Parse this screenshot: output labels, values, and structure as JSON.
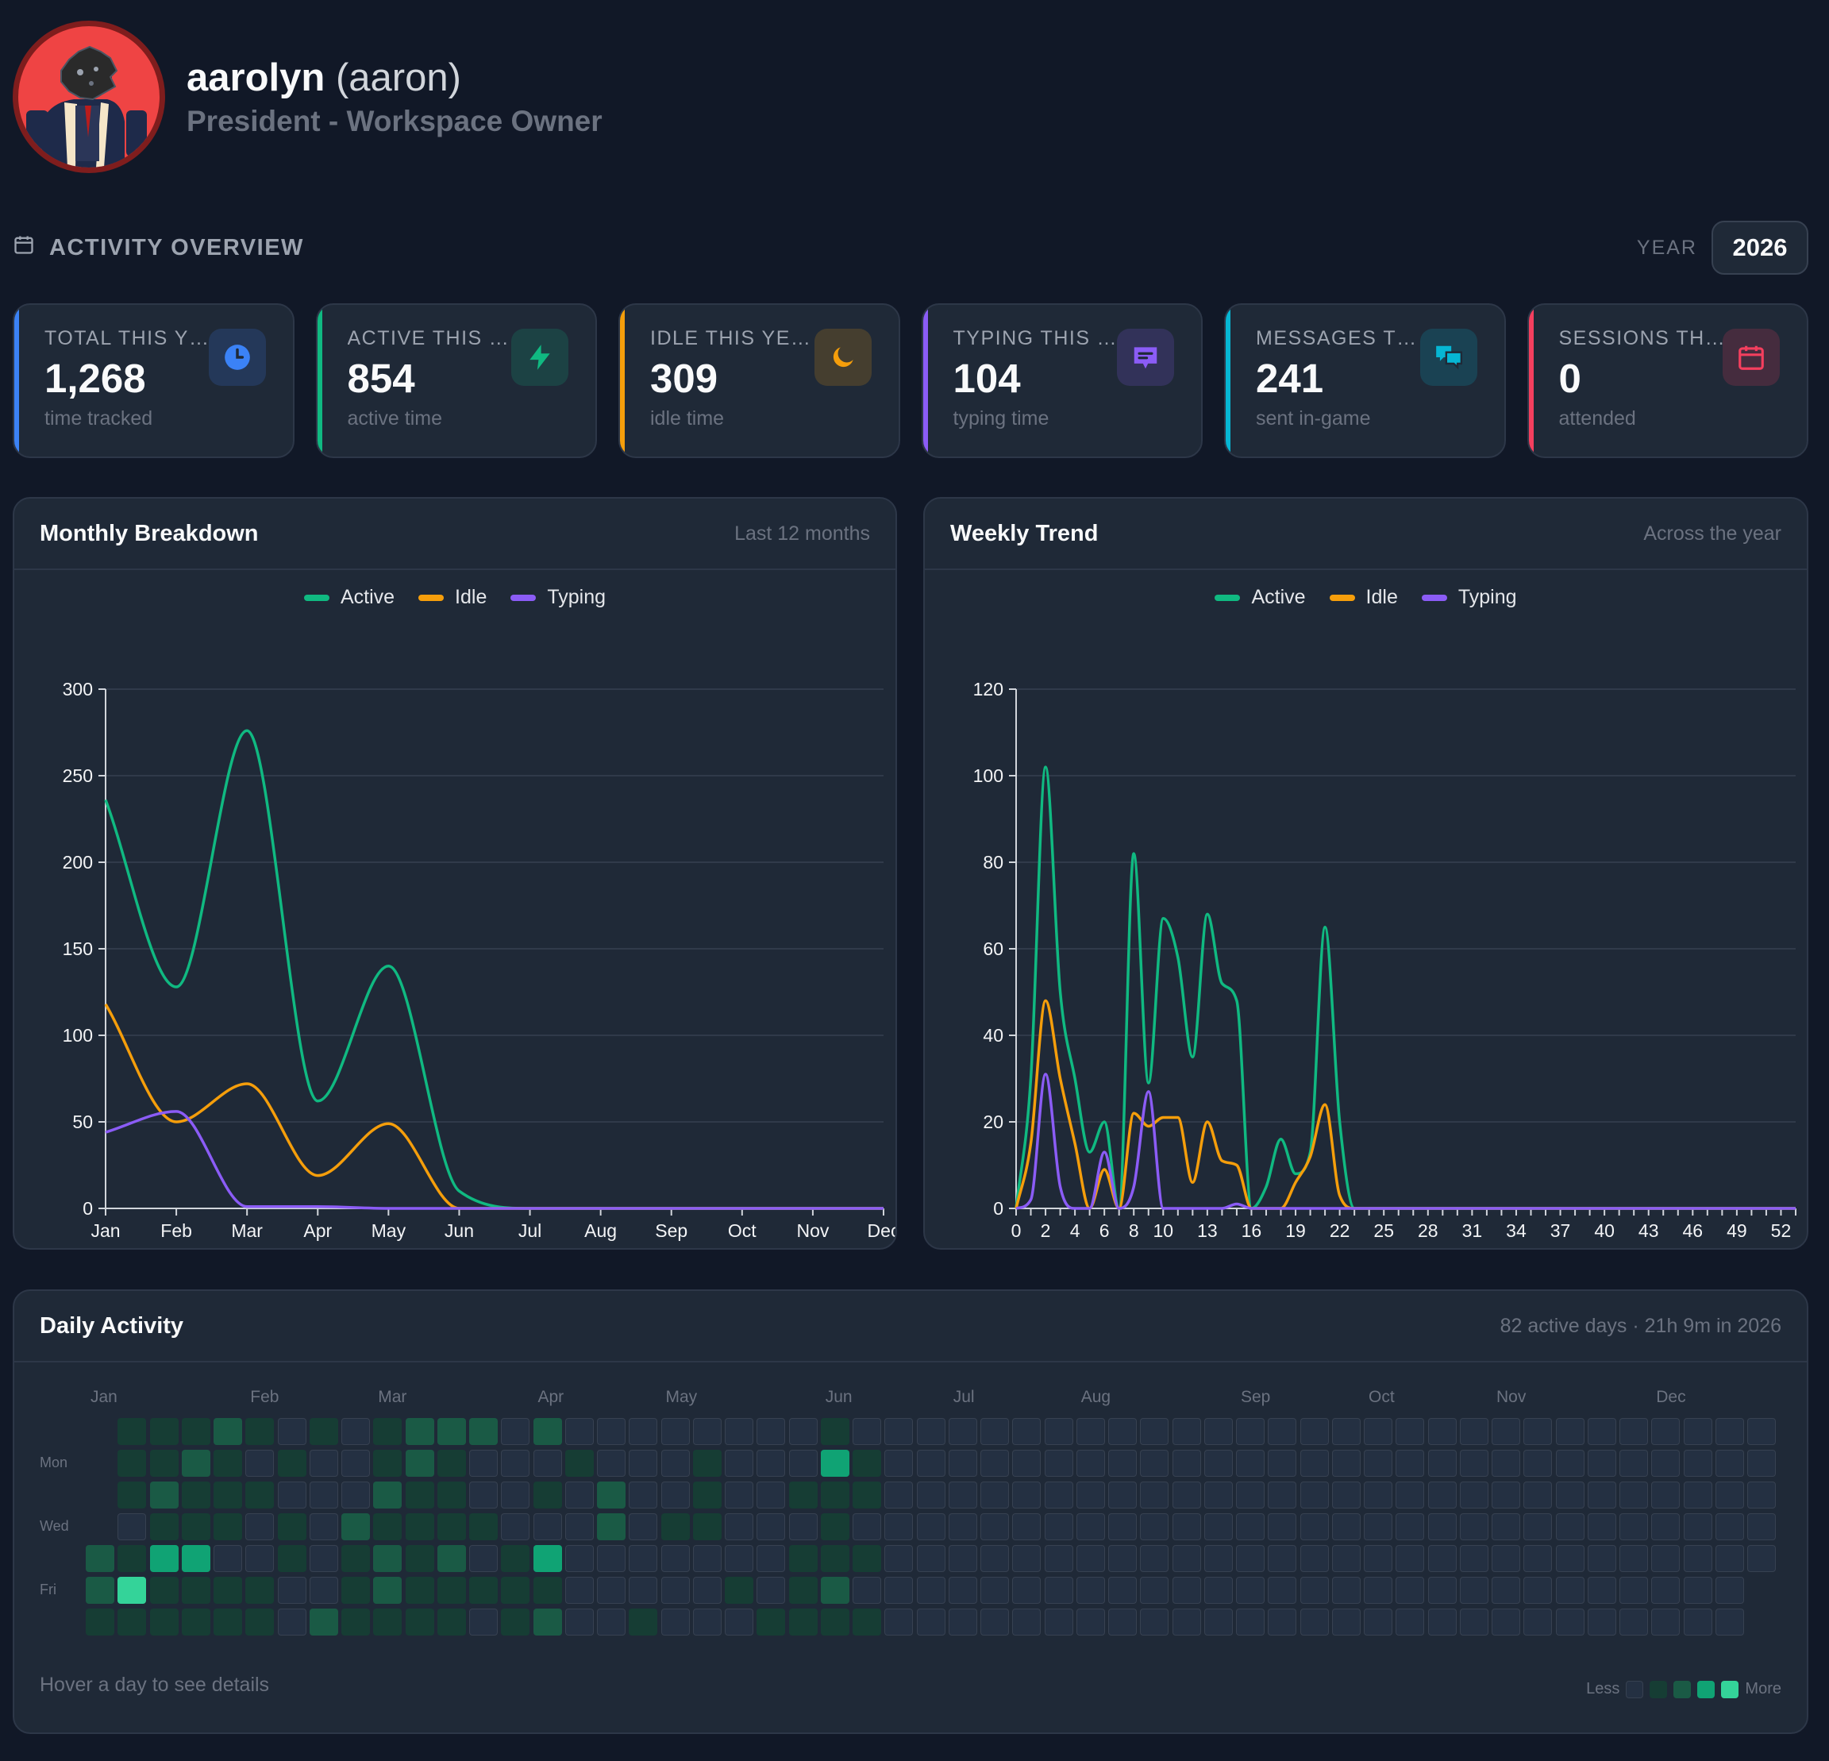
{
  "profile": {
    "name": "aarolyn",
    "handle": "(aaron)",
    "role": "President - Workspace Owner"
  },
  "overview": {
    "title": "ACTIVITY OVERVIEW",
    "year_label": "YEAR",
    "year_value": "2026"
  },
  "stats": [
    {
      "label": "TOTAL THIS YEAR",
      "value": "1,268",
      "sub": "time tracked",
      "color": "#3b82f6",
      "icon": "clock-icon"
    },
    {
      "label": "ACTIVE THIS YEAR",
      "value": "854",
      "sub": "active time",
      "color": "#10b981",
      "icon": "lightning-icon"
    },
    {
      "label": "IDLE THIS YEAR",
      "value": "309",
      "sub": "idle time",
      "color": "#f59e0b",
      "icon": "moon-icon"
    },
    {
      "label": "TYPING THIS YEAR",
      "value": "104",
      "sub": "typing time",
      "color": "#8b5cf6",
      "icon": "message-icon"
    },
    {
      "label": "MESSAGES THIS YEAR",
      "value": "241",
      "sub": "sent in-game",
      "color": "#06b6d4",
      "icon": "chat-bubbles-icon"
    },
    {
      "label": "SESSIONS THIS YEAR",
      "value": "0",
      "sub": "attended",
      "color": "#f43f5e",
      "icon": "calendar-icon"
    }
  ],
  "monthly": {
    "title": "Monthly Breakdown",
    "subtitle": "Last 12 months"
  },
  "weekly": {
    "title": "Weekly Trend",
    "subtitle": "Across the year"
  },
  "legend": {
    "active": "Active",
    "idle": "Idle",
    "typing": "Typing"
  },
  "colors": {
    "active": "#10b981",
    "idle": "#f59e0b",
    "typing": "#8b5cf6"
  },
  "chart_data": [
    {
      "type": "line",
      "title": "Monthly Breakdown",
      "x": [
        "Jan",
        "Feb",
        "Mar",
        "Apr",
        "May",
        "Jun",
        "Jul",
        "Aug",
        "Sep",
        "Oct",
        "Nov",
        "Dec"
      ],
      "ylim": [
        0,
        300
      ],
      "yticks": [
        0,
        50,
        100,
        150,
        200,
        250,
        300
      ],
      "grid": true,
      "legend": "top-center",
      "series": [
        {
          "name": "Active",
          "values": [
            236,
            128,
            276,
            62,
            140,
            10,
            0,
            0,
            0,
            0,
            0,
            0
          ]
        },
        {
          "name": "Idle",
          "values": [
            118,
            50,
            72,
            19,
            49,
            0,
            0,
            0,
            0,
            0,
            0,
            0
          ]
        },
        {
          "name": "Typing",
          "values": [
            44,
            56,
            1,
            1,
            0,
            0,
            0,
            0,
            0,
            0,
            0,
            0
          ]
        }
      ]
    },
    {
      "type": "line",
      "title": "Weekly Trend",
      "xticks": [
        0,
        2,
        4,
        6,
        8,
        10,
        13,
        16,
        19,
        22,
        25,
        28,
        31,
        34,
        37,
        40,
        43,
        46,
        49,
        52
      ],
      "xlim": [
        0,
        53
      ],
      "ylim": [
        0,
        120
      ],
      "yticks": [
        0,
        20,
        40,
        60,
        80,
        100,
        120
      ],
      "grid": true,
      "legend": "top-center",
      "series": [
        {
          "name": "Active",
          "x": [
            0,
            1,
            2,
            3,
            4,
            5,
            6,
            7,
            8,
            9,
            10,
            11,
            12,
            13,
            14,
            15,
            16,
            17,
            18,
            19,
            20,
            21,
            22,
            23,
            24,
            25,
            26,
            27,
            28,
            29,
            30,
            31,
            32,
            33,
            34,
            35,
            36,
            37,
            38,
            39,
            40,
            41,
            42,
            43,
            44,
            45,
            46,
            47,
            48,
            49,
            50,
            51,
            52,
            53
          ],
          "values": [
            0,
            30,
            102,
            50,
            30,
            13,
            20,
            0,
            82,
            29,
            67,
            58,
            35,
            68,
            52,
            48,
            0,
            5,
            16,
            8,
            13,
            65,
            20,
            0,
            0,
            0,
            0,
            0,
            0,
            0,
            0,
            0,
            0,
            0,
            0,
            0,
            0,
            0,
            0,
            0,
            0,
            0,
            0,
            0,
            0,
            0,
            0,
            0,
            0,
            0,
            0,
            0,
            0,
            0
          ]
        },
        {
          "name": "Idle",
          "x": [
            0,
            1,
            2,
            3,
            4,
            5,
            6,
            7,
            8,
            9,
            10,
            11,
            12,
            13,
            14,
            15,
            16,
            17,
            18,
            19,
            20,
            21,
            22,
            23,
            24,
            25,
            26,
            27,
            28,
            29,
            30,
            31,
            32,
            33,
            34,
            35,
            36,
            37,
            38,
            39,
            40,
            41,
            42,
            43,
            44,
            45,
            46,
            47,
            48,
            49,
            50,
            51,
            52,
            53
          ],
          "values": [
            0,
            15,
            48,
            30,
            15,
            0,
            9,
            0,
            22,
            19,
            21,
            21,
            6,
            20,
            11,
            10,
            0,
            0,
            0,
            6,
            12,
            24,
            3,
            0,
            0,
            0,
            0,
            0,
            0,
            0,
            0,
            0,
            0,
            0,
            0,
            0,
            0,
            0,
            0,
            0,
            0,
            0,
            0,
            0,
            0,
            0,
            0,
            0,
            0,
            0,
            0,
            0,
            0,
            0
          ]
        },
        {
          "name": "Typing",
          "x": [
            0,
            1,
            2,
            3,
            4,
            5,
            6,
            7,
            8,
            9,
            10,
            11,
            12,
            13,
            14,
            15,
            16,
            17,
            18,
            19,
            20,
            21,
            22,
            23,
            24,
            25,
            26,
            27,
            28,
            29,
            30,
            31,
            32,
            33,
            34,
            35,
            36,
            37,
            38,
            39,
            40,
            41,
            42,
            43,
            44,
            45,
            46,
            47,
            48,
            49,
            50,
            51,
            52,
            53
          ],
          "values": [
            0,
            2,
            31,
            5,
            0,
            0,
            13,
            0,
            5,
            27,
            0,
            0,
            0,
            0,
            0,
            1,
            0,
            0,
            0,
            0,
            0,
            0,
            0,
            0,
            0,
            0,
            0,
            0,
            0,
            0,
            0,
            0,
            0,
            0,
            0,
            0,
            0,
            0,
            0,
            0,
            0,
            0,
            0,
            0,
            0,
            0,
            0,
            0,
            0,
            0,
            0,
            0,
            0,
            0
          ]
        }
      ]
    }
  ],
  "daily": {
    "title": "Daily Activity",
    "subtitle": "82 active days · 21h 9m in 2026",
    "hint": "Hover a day to see details",
    "legend_less": "Less",
    "legend_more": "More",
    "months": [
      {
        "label": "Jan",
        "week": 0
      },
      {
        "label": "Feb",
        "week": 5
      },
      {
        "label": "Mar",
        "week": 9
      },
      {
        "label": "Apr",
        "week": 14
      },
      {
        "label": "May",
        "week": 18
      },
      {
        "label": "Jun",
        "week": 23
      },
      {
        "label": "Jul",
        "week": 27
      },
      {
        "label": "Aug",
        "week": 31
      },
      {
        "label": "Sep",
        "week": 36
      },
      {
        "label": "Oct",
        "week": 40
      },
      {
        "label": "Nov",
        "week": 44
      },
      {
        "label": "Dec",
        "week": 49
      }
    ],
    "day_labels": [
      {
        "label": "Mon",
        "row": 1
      },
      {
        "label": "Wed",
        "row": 3
      },
      {
        "label": "Fri",
        "row": 5
      }
    ],
    "level_colors": [
      "#243042",
      "#163d34",
      "#1a5a45",
      "#10a374",
      "#34d399"
    ],
    "first_day_row": 4,
    "total_days": 365,
    "active_levels": [
      2,
      2,
      1,
      1,
      1,
      1,
      0,
      1,
      4,
      1,
      1,
      1,
      2,
      1,
      3,
      1,
      1,
      1,
      2,
      1,
      1,
      3,
      1,
      1,
      2,
      1,
      1,
      1,
      0,
      1,
      1,
      1,
      0,
      1,
      0,
      0,
      1,
      1,
      0,
      1,
      0,
      1,
      1,
      0,
      0,
      1,
      0,
      0,
      0,
      0,
      0,
      2,
      0,
      0,
      0,
      2,
      1,
      1,
      1,
      1,
      1,
      2,
      1,
      2,
      2,
      1,
      2,
      2,
      1,
      1,
      1,
      1,
      1,
      2,
      1,
      1,
      1,
      2,
      1,
      1,
      2,
      0,
      0,
      1,
      0,
      1,
      0,
      0,
      0,
      0,
      0,
      1,
      1,
      1,
      2,
      0,
      1,
      0,
      3,
      1,
      2,
      0,
      1,
      0,
      0,
      0,
      0,
      0,
      0,
      0,
      2,
      2,
      0,
      0,
      0,
      0,
      0,
      0,
      0,
      0,
      0,
      1,
      0,
      0,
      0,
      1,
      0,
      0,
      0,
      0,
      1,
      1,
      1,
      0,
      0,
      0,
      0,
      0,
      0,
      0,
      0,
      1,
      0,
      0,
      0,
      0,
      0,
      0,
      0,
      1,
      0,
      0,
      1,
      0,
      1,
      1,
      1,
      1,
      3,
      1,
      1,
      1,
      2,
      1,
      0,
      1,
      1,
      0,
      1,
      0,
      1,
      0,
      0,
      0,
      0
    ]
  }
}
